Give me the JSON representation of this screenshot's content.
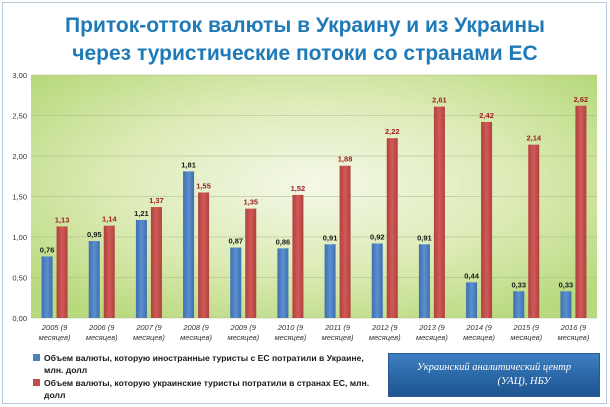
{
  "title": {
    "line1": "Приток-отток валюты в Украину и из Украины",
    "line2": "через туристические потоки со странами ЕС"
  },
  "legend": {
    "items": [
      {
        "text": "Объем валюты, которую иностранные туристы с ЕС потратили в Украине, млн. долл",
        "color": "#4f81bd"
      },
      {
        "text": "Объем валюты, которую украинские туристы потратили в странах ЕС, млн. долл",
        "color": "#c0504d"
      }
    ]
  },
  "source": {
    "line1": "Украинский аналитический центр",
    "line2": "(УАЦ), НБУ"
  },
  "chart_data": {
    "type": "bar",
    "categories": [
      [
        "2005 (9",
        "месяцев)"
      ],
      [
        "2006 (9",
        "месяцев)"
      ],
      [
        "2007 (9",
        "месяцев)"
      ],
      [
        "2008 (9",
        "месяцев)"
      ],
      [
        "2009 (9",
        "месяцев)"
      ],
      [
        "2010 (9",
        "месяцев)"
      ],
      [
        "2011 (9",
        "месяцев)"
      ],
      [
        "2012 (9",
        "месяцев)"
      ],
      [
        "2013 (9",
        "месяцев)"
      ],
      [
        "2014 (9",
        "месяцев)"
      ],
      [
        "2015 (9",
        "месяцев)"
      ],
      [
        "2016 (9",
        "месяцев)"
      ]
    ],
    "series": [
      {
        "name": "Объем валюты, которую иностранные туристы с ЕС потратили в Украине, млн. долл",
        "color": "#4f81bd",
        "values": [
          0.76,
          0.95,
          1.21,
          1.81,
          0.87,
          0.86,
          0.91,
          0.92,
          0.91,
          0.44,
          0.33,
          0.33
        ],
        "labels": [
          "0,76",
          "0,95",
          "1,21",
          "1,81",
          "0,87",
          "0,86",
          "0,91",
          "0,92",
          "0,91",
          "0,44",
          "0,33",
          "0,33"
        ]
      },
      {
        "name": "Объем валюты, которую украинские туристы потратили в странах ЕС, млн. долл",
        "color": "#c0504d",
        "values": [
          1.13,
          1.14,
          1.37,
          1.55,
          1.35,
          1.52,
          1.88,
          2.22,
          2.61,
          2.42,
          2.14,
          2.62
        ],
        "labels": [
          "1,13",
          "1,14",
          "1,37",
          "1,55",
          "1,35",
          "1,52",
          "1,88",
          "2,22",
          "2,61",
          "2,42",
          "2,14",
          "2,62"
        ]
      }
    ],
    "y_ticks": [
      0,
      0.5,
      1.0,
      1.5,
      2.0,
      2.5,
      3.0
    ],
    "y_tick_labels": [
      "0,00",
      "0,50",
      "1,00",
      "1,50",
      "2,00",
      "2,50",
      "3,00"
    ],
    "ylim": [
      0,
      3
    ],
    "grid": true,
    "legend_position": "bottom-left",
    "title": "Приток-отток валюты в Украину и из Украины через туристические потоки со странами ЕС"
  }
}
